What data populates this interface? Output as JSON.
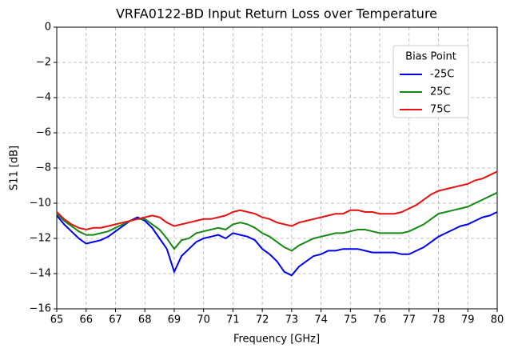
{
  "chart_data": {
    "type": "line",
    "title": "VRFA0122-BD Input Return Loss over Temperature",
    "xlabel": "Frequency [GHz]",
    "ylabel": "S11 [dB]",
    "legend_title": "Bias Point",
    "legend": "upper right",
    "grid": true,
    "x": [
      65,
      65.25,
      65.5,
      65.75,
      66,
      66.25,
      66.5,
      66.75,
      67,
      67.25,
      67.5,
      67.75,
      68,
      68.25,
      68.5,
      68.75,
      69,
      69.25,
      69.5,
      69.75,
      70,
      70.25,
      70.5,
      70.75,
      71,
      71.25,
      71.5,
      71.75,
      72,
      72.25,
      72.5,
      72.75,
      73,
      73.25,
      73.5,
      73.75,
      74,
      74.25,
      74.5,
      74.75,
      75,
      75.25,
      75.5,
      75.75,
      76,
      76.25,
      76.5,
      76.75,
      77,
      77.25,
      77.5,
      77.75,
      78,
      78.25,
      78.5,
      78.75,
      79,
      79.25,
      79.5,
      79.75,
      80
    ],
    "series": [
      {
        "name": "-25C",
        "color": "#0000ee",
        "values": [
          -10.7,
          -11.2,
          -11.6,
          -12.0,
          -12.3,
          -12.2,
          -12.1,
          -11.9,
          -11.6,
          -11.3,
          -11.0,
          -10.8,
          -11.0,
          -11.4,
          -12.0,
          -12.6,
          -13.9,
          -13.0,
          -12.6,
          -12.2,
          -12.0,
          -11.9,
          -11.8,
          -12.0,
          -11.7,
          -11.8,
          -11.9,
          -12.1,
          -12.6,
          -12.9,
          -13.3,
          -13.9,
          -14.1,
          -13.6,
          -13.3,
          -13.0,
          -12.9,
          -12.7,
          -12.7,
          -12.6,
          -12.6,
          -12.6,
          -12.7,
          -12.8,
          -12.8,
          -12.8,
          -12.8,
          -12.9,
          -12.9,
          -12.7,
          -12.5,
          -12.2,
          -11.9,
          -11.7,
          -11.5,
          -11.3,
          -11.2,
          -11.0,
          -10.8,
          -10.7,
          -10.5
        ]
      },
      {
        "name": "25C",
        "color": "#138a13",
        "values": [
          -10.6,
          -11.0,
          -11.3,
          -11.6,
          -11.8,
          -11.8,
          -11.7,
          -11.6,
          -11.4,
          -11.2,
          -11.0,
          -10.9,
          -10.9,
          -11.2,
          -11.5,
          -12.0,
          -12.6,
          -12.1,
          -12.0,
          -11.7,
          -11.6,
          -11.5,
          -11.4,
          -11.5,
          -11.2,
          -11.1,
          -11.2,
          -11.4,
          -11.7,
          -11.9,
          -12.2,
          -12.5,
          -12.7,
          -12.4,
          -12.2,
          -12.0,
          -11.9,
          -11.8,
          -11.7,
          -11.7,
          -11.6,
          -11.5,
          -11.5,
          -11.6,
          -11.7,
          -11.7,
          -11.7,
          -11.7,
          -11.6,
          -11.4,
          -11.2,
          -10.9,
          -10.6,
          -10.5,
          -10.4,
          -10.3,
          -10.2,
          -10.0,
          -9.8,
          -9.6,
          -9.4
        ]
      },
      {
        "name": "75C",
        "color": "#e81010",
        "values": [
          -10.5,
          -10.9,
          -11.2,
          -11.4,
          -11.5,
          -11.4,
          -11.4,
          -11.3,
          -11.2,
          -11.1,
          -11.0,
          -10.9,
          -10.8,
          -10.7,
          -10.8,
          -11.1,
          -11.3,
          -11.2,
          -11.1,
          -11.0,
          -10.9,
          -10.9,
          -10.8,
          -10.7,
          -10.5,
          -10.4,
          -10.5,
          -10.6,
          -10.8,
          -10.9,
          -11.1,
          -11.2,
          -11.3,
          -11.1,
          -11.0,
          -10.9,
          -10.8,
          -10.7,
          -10.6,
          -10.6,
          -10.4,
          -10.4,
          -10.5,
          -10.5,
          -10.6,
          -10.6,
          -10.6,
          -10.5,
          -10.3,
          -10.1,
          -9.8,
          -9.5,
          -9.3,
          -9.2,
          -9.1,
          -9.0,
          -8.9,
          -8.7,
          -8.6,
          -8.4,
          -8.2
        ]
      }
    ],
    "xlim": [
      65,
      80
    ],
    "xticks": [
      65,
      66,
      67,
      68,
      69,
      70,
      71,
      72,
      73,
      74,
      75,
      76,
      77,
      78,
      79,
      80
    ],
    "ylim": [
      -16,
      0
    ],
    "yticks": [
      {
        "value": -16,
        "label": "−16"
      },
      {
        "value": -14,
        "label": "−14"
      },
      {
        "value": -12,
        "label": "−12"
      },
      {
        "value": -10,
        "label": "−10"
      },
      {
        "value": -8,
        "label": "−8"
      },
      {
        "value": -6,
        "label": "−6"
      },
      {
        "value": -4,
        "label": "−4"
      },
      {
        "value": -2,
        "label": "−2"
      },
      0
    ]
  }
}
